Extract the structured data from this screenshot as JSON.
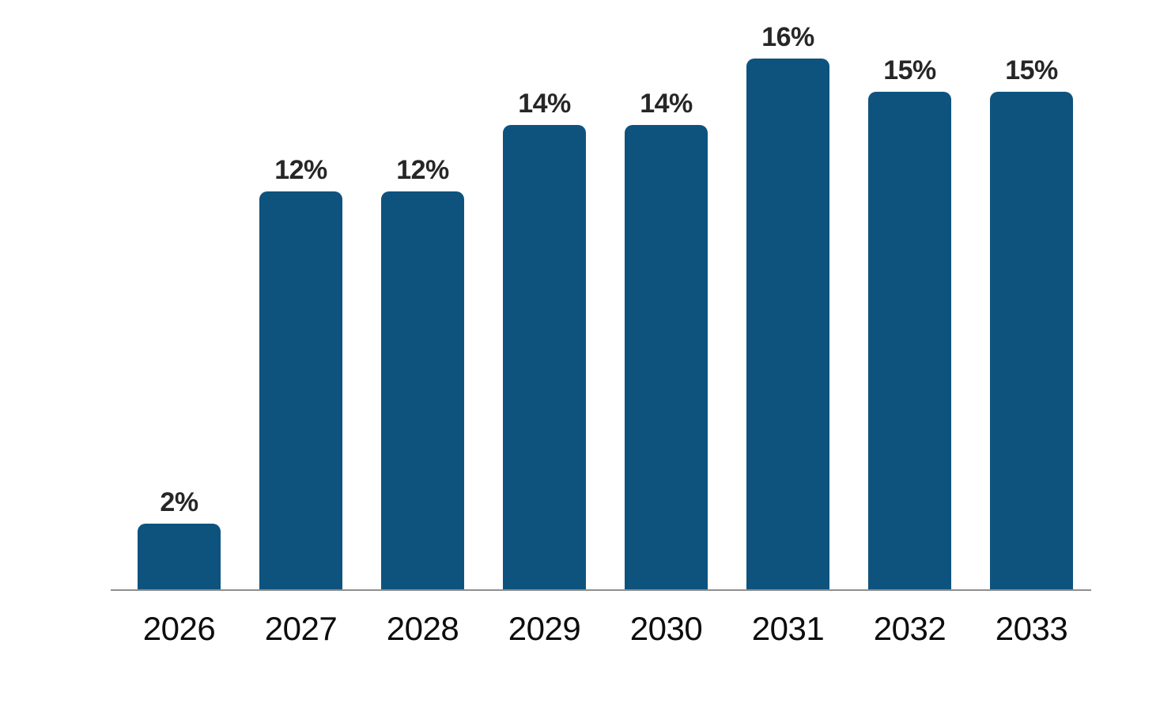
{
  "chart_data": {
    "type": "bar",
    "title": "",
    "xlabel": "",
    "ylabel": "",
    "categories": [
      "2026",
      "2027",
      "2028",
      "2029",
      "2030",
      "2031",
      "2032",
      "2033"
    ],
    "values": [
      2,
      12,
      12,
      14,
      14,
      16,
      15,
      15
    ],
    "value_labels": [
      "2%",
      "12%",
      "12%",
      "14%",
      "14%",
      "16%",
      "15%",
      "15%"
    ],
    "unit": "%",
    "ylim": [
      0,
      16
    ],
    "grid": false,
    "legend": "none",
    "y_axis_visible": false,
    "x_baseline_visible": true,
    "colors": {
      "bar_fill": "#0E537E",
      "value_label": "#262626",
      "category_label": "#0D0D0D",
      "axis_line": "#8F8F8F",
      "background": "#FFFFFF"
    }
  }
}
